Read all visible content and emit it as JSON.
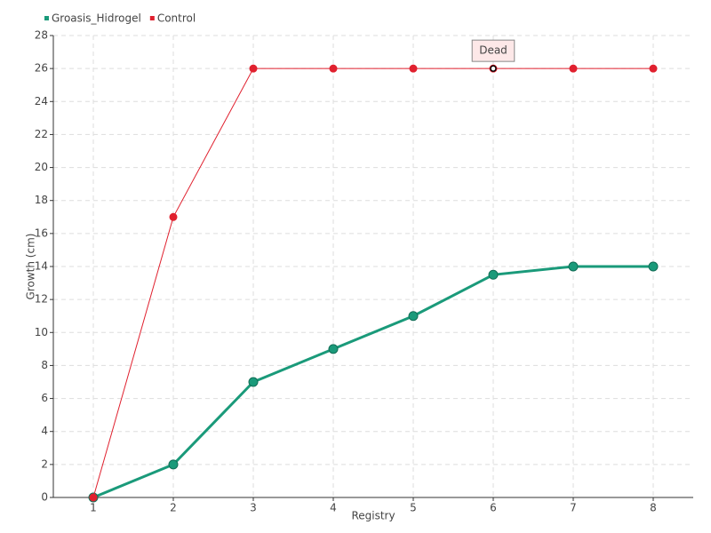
{
  "chart_data": {
    "type": "line",
    "x_label": "Registry",
    "y_label": "Growth (cm)",
    "x": [
      1,
      2,
      3,
      4,
      5,
      6,
      7,
      8
    ],
    "xlim": [
      0.5,
      8.5
    ],
    "xticks": [
      1,
      2,
      3,
      4,
      5,
      6,
      7,
      8
    ],
    "ylim": [
      0,
      28
    ],
    "yticks": [
      0,
      2,
      4,
      6,
      8,
      10,
      12,
      14,
      16,
      18,
      20,
      22,
      24,
      26,
      28
    ],
    "grid": true,
    "legend": "top-left",
    "series": [
      {
        "name": "Groasis_Hidrogel",
        "color": "#1a9a7a",
        "values": [
          0,
          2,
          7,
          9,
          11,
          13.5,
          14,
          14
        ]
      },
      {
        "name": "Control",
        "color": "#e0202e",
        "values": [
          0,
          17,
          26,
          26,
          26,
          26,
          26,
          26
        ]
      }
    ],
    "annotations": [
      {
        "text": "Dead",
        "x": 6,
        "y": 26
      }
    ]
  }
}
